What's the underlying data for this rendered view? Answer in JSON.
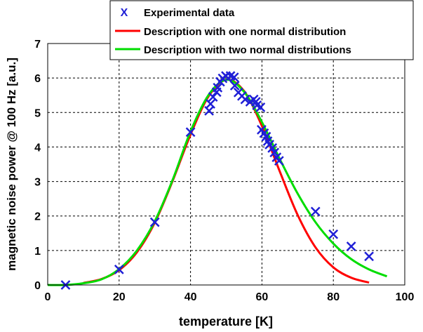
{
  "chart_data": {
    "type": "scatter",
    "title": "",
    "xlabel": "temperature [K]",
    "ylabel": "magnetic noise power @ 100 Hz [a.u.]",
    "xlim": [
      0,
      100
    ],
    "ylim": [
      0,
      7
    ],
    "xticks": [
      0,
      20,
      40,
      60,
      80,
      100
    ],
    "yticks": [
      0,
      1,
      2,
      3,
      4,
      5,
      6,
      7
    ],
    "grid": true,
    "legend_position": "top",
    "series": [
      {
        "name": "Experimental data",
        "kind": "scatter",
        "marker": "x",
        "legend_marker_text": "X",
        "color": "#1f1fd6",
        "points": [
          [
            5,
            0
          ],
          [
            20,
            0.45
          ],
          [
            30,
            1.82
          ],
          [
            40,
            4.43
          ],
          [
            45.2,
            5.05
          ],
          [
            45.6,
            5.25
          ],
          [
            46.3,
            5.45
          ],
          [
            47.3,
            5.59
          ],
          [
            47.6,
            5.72
          ],
          [
            48.3,
            5.89
          ],
          [
            49,
            5.99
          ],
          [
            49.9,
            6.06
          ],
          [
            51.2,
            6.06
          ],
          [
            52.2,
            6.02
          ],
          [
            52.4,
            5.78
          ],
          [
            53.4,
            5.58
          ],
          [
            54.4,
            5.48
          ],
          [
            55.3,
            5.38
          ],
          [
            56.7,
            5.31
          ],
          [
            57.7,
            5.38
          ],
          [
            58.3,
            5.31
          ],
          [
            58.6,
            5.21
          ],
          [
            59.6,
            5.15
          ],
          [
            59.9,
            4.5
          ],
          [
            60.6,
            4.4
          ],
          [
            61.2,
            4.3
          ],
          [
            61.6,
            4.17
          ],
          [
            62.1,
            4.07
          ],
          [
            62.9,
            3.97
          ],
          [
            63.5,
            3.84
          ],
          [
            64.1,
            3.7
          ],
          [
            64.8,
            3.6
          ],
          [
            75,
            2.13
          ],
          [
            80,
            1.47
          ],
          [
            85,
            1.12
          ],
          [
            90,
            0.83
          ]
        ]
      },
      {
        "name": "Description with one normal distribution",
        "kind": "line",
        "color": "#ff0000",
        "points": [
          [
            10,
            0.06
          ],
          [
            15,
            0.17
          ],
          [
            20,
            0.43
          ],
          [
            25,
            0.95
          ],
          [
            30,
            1.81
          ],
          [
            35,
            3.02
          ],
          [
            40,
            4.36
          ],
          [
            45,
            5.46
          ],
          [
            50,
            5.95
          ],
          [
            55,
            5.62
          ],
          [
            60,
            4.61
          ],
          [
            65,
            3.29
          ],
          [
            70,
            2.03
          ],
          [
            75,
            1.09
          ],
          [
            80,
            0.51
          ],
          [
            85,
            0.21
          ],
          [
            90,
            0.07
          ]
        ]
      },
      {
        "name": "Description with two normal distributions",
        "kind": "line",
        "color": "#00dd00",
        "points": [
          [
            0,
            0
          ],
          [
            5,
            0
          ],
          [
            10,
            0.05
          ],
          [
            15,
            0.16
          ],
          [
            20,
            0.46
          ],
          [
            25,
            1.0
          ],
          [
            30,
            1.85
          ],
          [
            35,
            3.05
          ],
          [
            40,
            4.45
          ],
          [
            45,
            5.5
          ],
          [
            50,
            5.95
          ],
          [
            55,
            5.6
          ],
          [
            60,
            4.72
          ],
          [
            65,
            3.65
          ],
          [
            70,
            2.65
          ],
          [
            75,
            1.82
          ],
          [
            80,
            1.2
          ],
          [
            85,
            0.75
          ],
          [
            90,
            0.45
          ],
          [
            95,
            0.25
          ]
        ]
      }
    ]
  }
}
